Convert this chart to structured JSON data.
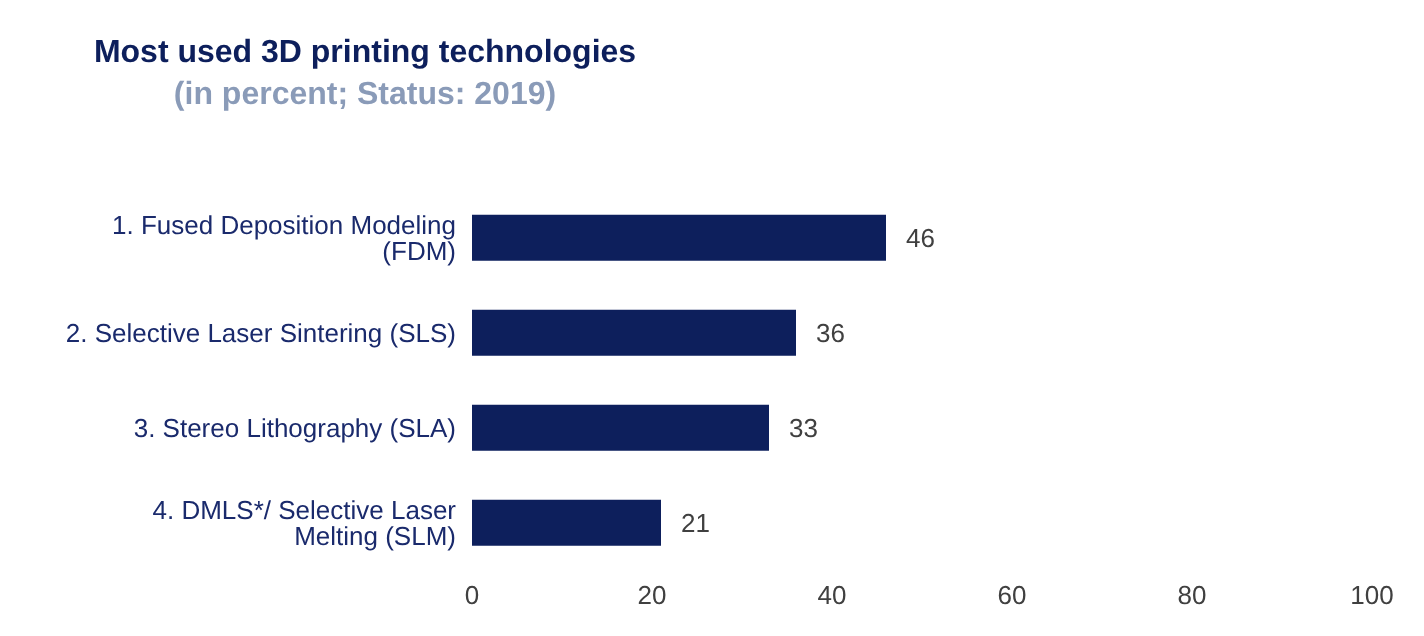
{
  "chart_data": {
    "type": "bar",
    "orientation": "horizontal",
    "title": "Most used 3D printing technologies",
    "subtitle": "(in percent; Status: 2019)",
    "categories": [
      "1. Fused Deposition Modeling (FDM)",
      "2. Selective Laser Sintering (SLS)",
      "3. Stereo Lithography (SLA)",
      "4. DMLS*/ Selective Laser Melting (SLM)"
    ],
    "values": [
      46,
      36,
      33,
      21
    ],
    "color": "#0d1f5c",
    "xlim": [
      0,
      100
    ],
    "xticks": [
      0,
      20,
      40,
      60,
      80,
      100
    ],
    "data_labels": true
  }
}
